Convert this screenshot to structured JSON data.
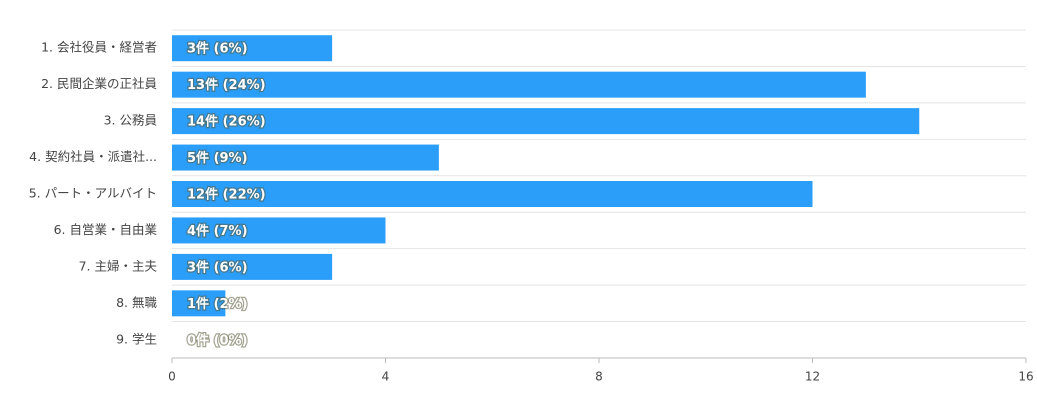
{
  "chart_data": {
    "type": "bar",
    "orientation": "horizontal",
    "categories": [
      "1. 会社役員・経営者",
      "2. 民間企業の正社員",
      "3. 公務員",
      "4. 契約社員・派遣社...",
      "5. パート・アルバイト",
      "6. 自営業・自由業",
      "7. 主婦・主夫",
      "8. 無職",
      "9. 学生"
    ],
    "values": [
      3,
      13,
      14,
      5,
      12,
      4,
      3,
      1,
      0
    ],
    "value_labels": [
      "3件 (6%)",
      "13件 (24%)",
      "14件 (26%)",
      "5件 (9%)",
      "12件 (22%)",
      "4件 (7%)",
      "3件 (6%)",
      "1件 (2%)",
      "0件 (0%)"
    ],
    "color": "#2b9ef9",
    "xlim": [
      0,
      16
    ],
    "xticks": [
      0,
      4,
      8,
      12,
      16
    ],
    "grid": true
  }
}
